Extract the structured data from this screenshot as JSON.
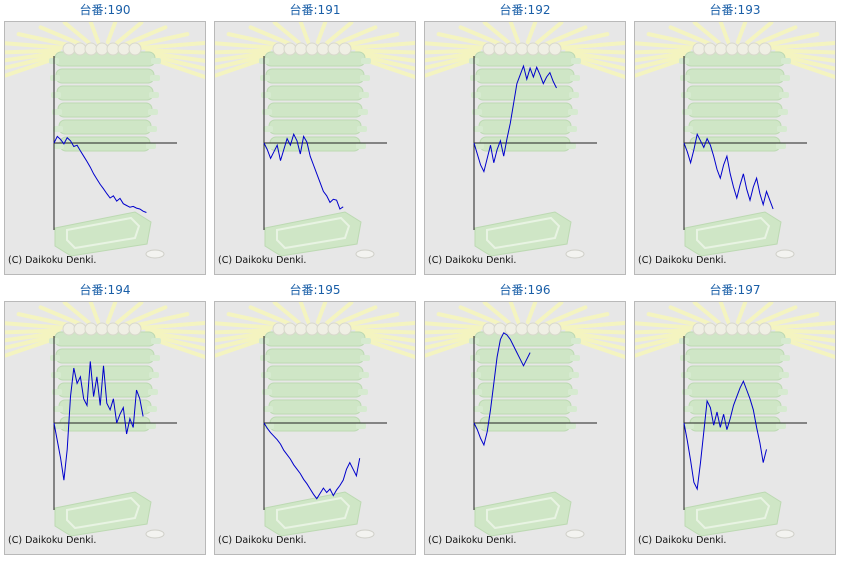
{
  "page": {
    "copyright": "(C) Daikoku Denki."
  },
  "colors": {
    "title": "#1a5fa8",
    "line": "#0000cc",
    "axis": "#222222",
    "panel_bg": "#e7e7e7",
    "panel_border": "#b9b9b9",
    "decor_green": "#cfe6c6",
    "decor_ray": "#f4f4c0"
  },
  "chart_data": [
    {
      "type": "line",
      "title": "台番:190",
      "y": [
        0.0,
        0.15,
        0.08,
        -0.02,
        0.12,
        0.05,
        -0.08,
        -0.05,
        -0.18,
        -0.3,
        -0.42,
        -0.55,
        -0.7,
        -0.82,
        -0.94,
        -1.04,
        -1.15,
        -1.25,
        -1.2,
        -1.32,
        -1.26,
        -1.38,
        -1.42,
        -1.46,
        -1.44,
        -1.48,
        -1.5,
        -1.55,
        -1.58
      ]
    },
    {
      "type": "line",
      "title": "台番:191",
      "y": [
        0.0,
        -0.15,
        -0.35,
        -0.2,
        -0.05,
        -0.4,
        -0.15,
        0.1,
        -0.05,
        0.2,
        0.05,
        -0.25,
        0.15,
        0.02,
        -0.3,
        -0.5,
        -0.7,
        -0.9,
        -1.1,
        -1.2,
        -1.35,
        -1.28,
        -1.3,
        -1.5,
        -1.45
      ]
    },
    {
      "type": "line",
      "title": "台番:192",
      "y": [
        0.0,
        -0.25,
        -0.5,
        -0.65,
        -0.35,
        -0.05,
        -0.45,
        -0.15,
        0.05,
        -0.3,
        0.1,
        0.45,
        0.9,
        1.35,
        1.55,
        1.75,
        1.45,
        1.7,
        1.5,
        1.72,
        1.55,
        1.35,
        1.5,
        1.6,
        1.4,
        1.25
      ]
    },
    {
      "type": "line",
      "title": "台番:193",
      "y": [
        0.0,
        -0.2,
        -0.45,
        -0.15,
        0.2,
        0.05,
        -0.1,
        0.1,
        -0.05,
        -0.3,
        -0.6,
        -0.8,
        -0.5,
        -0.3,
        -0.7,
        -1.0,
        -1.25,
        -0.95,
        -0.7,
        -1.05,
        -1.3,
        -1.0,
        -0.8,
        -1.15,
        -1.4,
        -1.1,
        -1.3,
        -1.5
      ]
    },
    {
      "type": "line",
      "title": "台番:194",
      "y": [
        0.0,
        -0.4,
        -0.8,
        -1.3,
        -0.6,
        0.6,
        1.25,
        0.9,
        1.05,
        0.55,
        0.4,
        1.4,
        0.6,
        1.05,
        0.4,
        1.3,
        0.45,
        0.3,
        0.55,
        0.0,
        0.2,
        0.35,
        -0.25,
        0.1,
        -0.1,
        0.75,
        0.55,
        0.15
      ]
    },
    {
      "type": "line",
      "title": "台番:195",
      "y": [
        0.0,
        -0.12,
        -0.22,
        -0.3,
        -0.38,
        -0.48,
        -0.62,
        -0.72,
        -0.82,
        -0.95,
        -1.05,
        -1.15,
        -1.28,
        -1.38,
        -1.5,
        -1.62,
        -1.72,
        -1.6,
        -1.48,
        -1.58,
        -1.5,
        -1.65,
        -1.52,
        -1.42,
        -1.3,
        -1.05,
        -0.9,
        -1.05,
        -1.2,
        -0.8
      ]
    },
    {
      "type": "line",
      "title": "台番:196",
      "y": [
        0.0,
        -0.15,
        -0.35,
        -0.5,
        -0.2,
        0.3,
        0.9,
        1.5,
        1.9,
        2.05,
        2.0,
        1.9,
        1.75,
        1.6,
        1.45,
        1.3,
        1.45,
        1.6
      ]
    },
    {
      "type": "line",
      "title": "台番:197",
      "y": [
        0.0,
        -0.4,
        -0.85,
        -1.35,
        -1.5,
        -0.9,
        -0.2,
        0.5,
        0.35,
        -0.05,
        0.25,
        -0.1,
        0.2,
        -0.15,
        0.1,
        0.4,
        0.6,
        0.8,
        0.95,
        0.75,
        0.55,
        0.3,
        -0.1,
        -0.45,
        -0.9,
        -0.6
      ]
    }
  ]
}
